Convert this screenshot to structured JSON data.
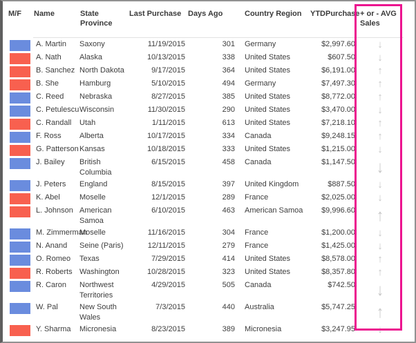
{
  "icons": {
    "up": "↑",
    "down": "↓"
  },
  "colors": {
    "blue_bar": "#6a8cde",
    "red_bar": "#f8604f",
    "arrow": "#c7c7c7",
    "highlight": "#ec138f",
    "header_text": "#3b3b3b",
    "body_text": "#3d3d3d",
    "frame_border": "#919191"
  },
  "table": {
    "columns": [
      {
        "key": "mf",
        "label": "M/F"
      },
      {
        "key": "name",
        "label": "Name"
      },
      {
        "key": "state",
        "label": "State Province"
      },
      {
        "key": "last",
        "label": "Last Purchase"
      },
      {
        "key": "days",
        "label": "Days Ago"
      },
      {
        "key": "country",
        "label": "Country Region"
      },
      {
        "key": "ytd",
        "label": "YTDPurchase"
      },
      {
        "key": "arrow",
        "label": "+ or - AVG Sales"
      }
    ],
    "rows": [
      {
        "mf": "blue",
        "name": "A. Martin",
        "state": "Saxony",
        "last": "11/19/2015",
        "days": "301",
        "country": "Germany",
        "ytd": "$2,997.60",
        "trend": "down",
        "arrow_large": false
      },
      {
        "mf": "red",
        "name": "A. Nath",
        "state": "Alaska",
        "last": "10/13/2015",
        "days": "338",
        "country": "United States",
        "ytd": "$607.50",
        "trend": "down",
        "arrow_large": false
      },
      {
        "mf": "red",
        "name": "B. Sanchez",
        "state": "North Dakota",
        "last": "9/17/2015",
        "days": "364",
        "country": "United States",
        "ytd": "$6,191.00",
        "trend": "up",
        "arrow_large": false
      },
      {
        "mf": "red",
        "name": "B. She",
        "state": "Hamburg",
        "last": "5/10/2015",
        "days": "494",
        "country": "Germany",
        "ytd": "$7,497.30",
        "trend": "up",
        "arrow_large": false
      },
      {
        "mf": "blue",
        "name": "C. Reed",
        "state": "Nebraska",
        "last": "8/27/2015",
        "days": "385",
        "country": "United States",
        "ytd": "$8,772.00",
        "trend": "up",
        "arrow_large": false
      },
      {
        "mf": "blue",
        "name": "C. Petulescu",
        "state": "Wisconsin",
        "last": "11/30/2015",
        "days": "290",
        "country": "United States",
        "ytd": "$3,470.00",
        "trend": "down",
        "arrow_large": false
      },
      {
        "mf": "red",
        "name": "C. Randall",
        "state": "Utah",
        "last": "1/11/2015",
        "days": "613",
        "country": "United States",
        "ytd": "$7,218.10",
        "trend": "up",
        "arrow_large": false
      },
      {
        "mf": "blue",
        "name": "F. Ross",
        "state": "Alberta",
        "last": "10/17/2015",
        "days": "334",
        "country": "Canada",
        "ytd": "$9,248.15",
        "trend": "up",
        "arrow_large": false
      },
      {
        "mf": "red",
        "name": "G. Patterson",
        "state": "Kansas",
        "last": "10/18/2015",
        "days": "333",
        "country": "United States",
        "ytd": "$1,215.00",
        "trend": "down",
        "arrow_large": false
      },
      {
        "mf": "blue",
        "name": "J. Bailey",
        "state": "British Columbia",
        "last": "6/15/2015",
        "days": "458",
        "country": "Canada",
        "ytd": "$1,147.50",
        "trend": "down",
        "arrow_large": true
      },
      {
        "mf": "blue",
        "name": "J. Peters",
        "state": "England",
        "last": "8/15/2015",
        "days": "397",
        "country": "United Kingdom",
        "ytd": "$887.50",
        "trend": "down",
        "arrow_large": false
      },
      {
        "mf": "red",
        "name": "K. Abel",
        "state": "Moselle",
        "last": "12/1/2015",
        "days": "289",
        "country": "France",
        "ytd": "$2,025.00",
        "trend": "down",
        "arrow_large": false
      },
      {
        "mf": "red",
        "name": "L. Johnson",
        "state": "American Samoa",
        "last": "6/10/2015",
        "days": "463",
        "country": "American Samoa",
        "ytd": "$9,996.60",
        "trend": "up",
        "arrow_large": true
      },
      {
        "mf": "blue",
        "name": "M. Zimmerman",
        "state": "Moselle",
        "last": "11/16/2015",
        "days": "304",
        "country": "France",
        "ytd": "$1,200.00",
        "trend": "down",
        "arrow_large": false
      },
      {
        "mf": "blue",
        "name": "N. Anand",
        "state": "Seine (Paris)",
        "last": "12/11/2015",
        "days": "279",
        "country": "France",
        "ytd": "$1,425.00",
        "trend": "down",
        "arrow_large": false
      },
      {
        "mf": "blue",
        "name": "O. Romeo",
        "state": "Texas",
        "last": "7/29/2015",
        "days": "414",
        "country": "United States",
        "ytd": "$8,578.00",
        "trend": "up",
        "arrow_large": false
      },
      {
        "mf": "red",
        "name": "R. Roberts",
        "state": "Washington",
        "last": "10/28/2015",
        "days": "323",
        "country": "United States",
        "ytd": "$8,357.80",
        "trend": "up",
        "arrow_large": false
      },
      {
        "mf": "blue",
        "name": "R. Caron",
        "state": "Northwest Territories",
        "last": "4/29/2015",
        "days": "505",
        "country": "Canada",
        "ytd": "$742.50",
        "trend": "down",
        "arrow_large": true
      },
      {
        "mf": "blue",
        "name": "W. Pal",
        "state": "New South Wales",
        "last": "7/3/2015",
        "days": "440",
        "country": "Australia",
        "ytd": "$5,747.25",
        "trend": "up",
        "arrow_large": true
      },
      {
        "mf": "red",
        "name": "Y. Sharma",
        "state": "Micronesia",
        "last": "8/23/2015",
        "days": "389",
        "country": "Micronesia",
        "ytd": "$3,247.95",
        "trend": "down",
        "arrow_large": false
      }
    ]
  }
}
